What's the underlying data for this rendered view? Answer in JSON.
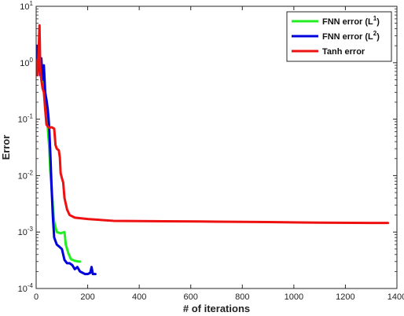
{
  "chart_data": {
    "type": "line",
    "xlabel": "# of iterations",
    "ylabel": "Error",
    "xlim": [
      0,
      1400
    ],
    "ylim": [
      0.0001,
      10
    ],
    "yscale": "log",
    "grid": false,
    "legend_position": "top-right",
    "x_ticks": [
      0,
      200,
      400,
      600,
      800,
      1000,
      1200,
      1400
    ],
    "x_tick_labels": [
      "0",
      "200",
      "400",
      "600",
      "800",
      "1000",
      "1200",
      "1400"
    ],
    "y_ticks": [
      0.0001,
      0.001,
      0.01,
      0.1,
      1,
      10
    ],
    "y_tick_labels": [
      {
        "base": "10",
        "exp": "-4"
      },
      {
        "base": "10",
        "exp": "-3"
      },
      {
        "base": "10",
        "exp": "-2"
      },
      {
        "base": "10",
        "exp": "-1"
      },
      {
        "base": "10",
        "exp": "0"
      },
      {
        "base": "10",
        "exp": "1"
      }
    ],
    "series": [
      {
        "name": "FNN error (L",
        "name_sup": "1",
        "name_end": ")",
        "color": "#22ee22",
        "points": [
          [
            0,
            0.6
          ],
          [
            5,
            1.6
          ],
          [
            10,
            2.0
          ],
          [
            15,
            1.0
          ],
          [
            20,
            0.7
          ],
          [
            25,
            0.9
          ],
          [
            30,
            0.45
          ],
          [
            35,
            0.25
          ],
          [
            40,
            0.12
          ],
          [
            45,
            0.07
          ],
          [
            50,
            0.035
          ],
          [
            55,
            0.012
          ],
          [
            60,
            0.006
          ],
          [
            65,
            0.0028
          ],
          [
            70,
            0.0015
          ],
          [
            80,
            0.001
          ],
          [
            95,
            0.00095
          ],
          [
            110,
            0.001
          ],
          [
            115,
            0.0006
          ],
          [
            125,
            0.00042
          ],
          [
            135,
            0.00033
          ],
          [
            150,
            0.00031
          ],
          [
            165,
            0.0003
          ],
          [
            170,
            0.0003
          ]
        ]
      },
      {
        "name": "FNN error (L",
        "name_sup": "2",
        "name_end": ")",
        "color": "#0000dd",
        "points": [
          [
            0,
            1.4
          ],
          [
            4,
            2.0
          ],
          [
            8,
            0.8
          ],
          [
            12,
            1.5
          ],
          [
            16,
            0.6
          ],
          [
            20,
            1.2
          ],
          [
            25,
            0.5
          ],
          [
            30,
            0.9
          ],
          [
            35,
            0.3
          ],
          [
            40,
            0.22
          ],
          [
            45,
            0.15
          ],
          [
            50,
            0.08
          ],
          [
            55,
            0.025
          ],
          [
            60,
            0.006
          ],
          [
            65,
            0.0018
          ],
          [
            70,
            0.0008
          ],
          [
            80,
            0.0006
          ],
          [
            90,
            0.00055
          ],
          [
            100,
            0.0005
          ],
          [
            110,
            0.00032
          ],
          [
            120,
            0.00028
          ],
          [
            130,
            0.00028
          ],
          [
            140,
            0.00026
          ],
          [
            150,
            0.00022
          ],
          [
            160,
            0.00024
          ],
          [
            170,
            0.0002
          ],
          [
            180,
            0.00019
          ],
          [
            190,
            0.00018
          ],
          [
            200,
            0.00018
          ],
          [
            210,
            0.00019
          ],
          [
            215,
            0.00024
          ],
          [
            220,
            0.00018
          ],
          [
            230,
            0.00018
          ]
        ]
      },
      {
        "name": "Tanh error",
        "name_sup": "",
        "name_end": "",
        "color": "#ee1111",
        "points": [
          [
            0,
            1.1
          ],
          [
            5,
            0.6
          ],
          [
            10,
            1.8
          ],
          [
            13,
            4.6
          ],
          [
            16,
            0.8
          ],
          [
            20,
            0.5
          ],
          [
            25,
            0.35
          ],
          [
            30,
            0.3
          ],
          [
            35,
            0.15
          ],
          [
            40,
            0.08
          ],
          [
            50,
            0.07
          ],
          [
            60,
            0.072
          ],
          [
            70,
            0.068
          ],
          [
            75,
            0.035
          ],
          [
            80,
            0.03
          ],
          [
            88,
            0.028
          ],
          [
            92,
            0.021
          ],
          [
            95,
            0.011
          ],
          [
            100,
            0.009
          ],
          [
            105,
            0.0075
          ],
          [
            110,
            0.004
          ],
          [
            120,
            0.0025
          ],
          [
            130,
            0.002
          ],
          [
            150,
            0.0018
          ],
          [
            200,
            0.0017
          ],
          [
            300,
            0.00158
          ],
          [
            500,
            0.00155
          ],
          [
            700,
            0.00153
          ],
          [
            900,
            0.0015
          ],
          [
            1100,
            0.00147
          ],
          [
            1300,
            0.00145
          ],
          [
            1365,
            0.00145
          ]
        ]
      }
    ]
  }
}
